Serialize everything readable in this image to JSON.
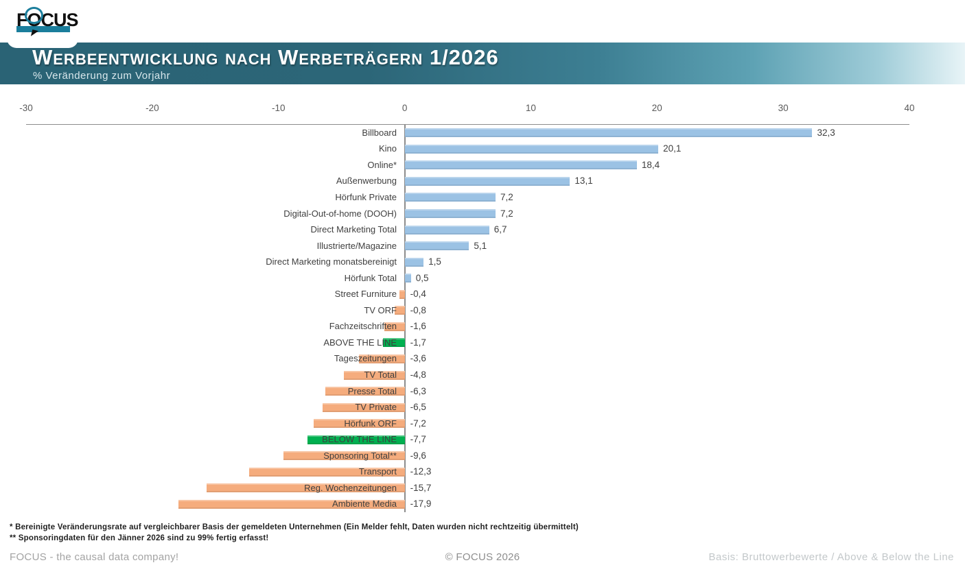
{
  "header": {
    "logo": {
      "f": "F",
      "o": "O",
      "cus": "CUS"
    },
    "title": "Werbeentwicklung nach Werbeträgern 1/2026",
    "subtitle": "% Veränderung zum Vorjahr"
  },
  "chart_data": {
    "type": "bar",
    "orientation": "horizontal",
    "title": "Werbeentwicklung nach Werbeträgern 1/2026",
    "xlabel": "% Veränderung zum Vorjahr",
    "xlim": [
      -30,
      40
    ],
    "xticks": [
      -30,
      -20,
      -10,
      0,
      10,
      20,
      30,
      40
    ],
    "xtick_labels": [
      "-30",
      "-20",
      "-10",
      "0",
      "10",
      "20",
      "30",
      "40"
    ],
    "grid": false,
    "legend": "none",
    "colors": {
      "positive": "#9bc2e4",
      "negative": "#f5ac7d",
      "highlight": "#00b050"
    },
    "items": [
      {
        "label": "Billboard",
        "value": 32.3,
        "display": "32,3",
        "color": "positive"
      },
      {
        "label": "Kino",
        "value": 20.1,
        "display": "20,1",
        "color": "positive"
      },
      {
        "label": "Online*",
        "value": 18.4,
        "display": "18,4",
        "color": "positive"
      },
      {
        "label": "Außenwerbung",
        "value": 13.1,
        "display": "13,1",
        "color": "positive"
      },
      {
        "label": "Hörfunk Private",
        "value": 7.2,
        "display": "7,2",
        "color": "positive"
      },
      {
        "label": "Digital-Out-of-home (DOOH)",
        "value": 7.2,
        "display": "7,2",
        "color": "positive"
      },
      {
        "label": "Direct Marketing Total",
        "value": 6.7,
        "display": "6,7",
        "color": "positive"
      },
      {
        "label": "Illustrierte/Magazine",
        "value": 5.1,
        "display": "5,1",
        "color": "positive"
      },
      {
        "label": "Direct Marketing monatsbereinigt",
        "value": 1.5,
        "display": "1,5",
        "color": "positive"
      },
      {
        "label": "Hörfunk Total",
        "value": 0.5,
        "display": "0,5",
        "color": "positive"
      },
      {
        "label": "Street Furniture",
        "value": -0.4,
        "display": "-0,4",
        "color": "negative"
      },
      {
        "label": "TV ORF",
        "value": -0.8,
        "display": "-0,8",
        "color": "negative"
      },
      {
        "label": "Fachzeitschriften",
        "value": -1.6,
        "display": "-1,6",
        "color": "negative"
      },
      {
        "label": "ABOVE THE LINE",
        "value": -1.7,
        "display": "-1,7",
        "color": "highlight"
      },
      {
        "label": "Tageszeitungen",
        "value": -3.6,
        "display": "-3,6",
        "color": "negative"
      },
      {
        "label": "TV Total",
        "value": -4.8,
        "display": "-4,8",
        "color": "negative"
      },
      {
        "label": "Presse Total",
        "value": -6.3,
        "display": "-6,3",
        "color": "negative"
      },
      {
        "label": "TV Private",
        "value": -6.5,
        "display": "-6,5",
        "color": "negative"
      },
      {
        "label": "Hörfunk ORF",
        "value": -7.2,
        "display": "-7,2",
        "color": "negative"
      },
      {
        "label": "BELOW THE LINE",
        "value": -7.7,
        "display": "-7,7",
        "color": "highlight"
      },
      {
        "label": "Sponsoring Total**",
        "value": -9.6,
        "display": "-9,6",
        "color": "negative"
      },
      {
        "label": "Transport",
        "value": -12.3,
        "display": "-12,3",
        "color": "negative"
      },
      {
        "label": "Reg. Wochenzeitungen",
        "value": -15.7,
        "display": "-15,7",
        "color": "negative"
      },
      {
        "label": "Ambiente Media",
        "value": -17.9,
        "display": "-17,9",
        "color": "negative"
      }
    ]
  },
  "footnotes": [
    "* Bereinigte Veränderungsrate auf vergleichbarer Basis der gemeldeten  Unternehmen (Ein Melder fehlt, Daten wurden nicht rechtzeitig  übermittelt)",
    "** Sponsoringdaten  für den Jänner 2026  sind zu 99%  fertig  erfasst!"
  ],
  "footer": {
    "left": "FOCUS - the causal data  company!",
    "center": "© FOCUS 2026",
    "right": "Basis: Bruttowerbewerte / Above & Below the Line"
  }
}
